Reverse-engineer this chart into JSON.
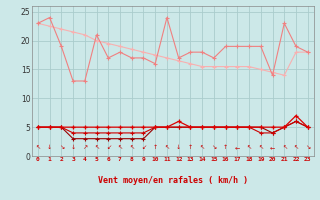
{
  "xlabel": "Vent moyen/en rafales ( km/h )",
  "hours": [
    0,
    1,
    2,
    3,
    4,
    5,
    6,
    7,
    8,
    9,
    10,
    11,
    12,
    13,
    14,
    15,
    16,
    17,
    18,
    19,
    20,
    21,
    22,
    23
  ],
  "rafales": [
    23,
    24,
    19,
    13,
    13,
    21,
    17,
    18,
    17,
    17,
    16,
    24,
    17,
    18,
    18,
    17,
    19,
    19,
    19,
    19,
    14,
    23,
    19,
    18
  ],
  "trend1": [
    23,
    22.5,
    22,
    21.5,
    21,
    20.0,
    19.5,
    19.0,
    18.5,
    18.0,
    17.5,
    17.0,
    16.5,
    16.0,
    15.5,
    15.5,
    15.5,
    15.5,
    15.5,
    15.0,
    14.5,
    14.0,
    18.0,
    18.0
  ],
  "vent_moyen": [
    5,
    5,
    5,
    5,
    5,
    5,
    5,
    5,
    5,
    5,
    5,
    5,
    6,
    5,
    5,
    5,
    5,
    5,
    5,
    5,
    5,
    5,
    7,
    5
  ],
  "vent_low1": [
    5,
    5,
    5,
    4,
    4,
    4,
    4,
    4,
    4,
    4,
    5,
    5,
    5,
    5,
    5,
    5,
    5,
    5,
    5,
    4,
    4,
    5,
    6,
    5
  ],
  "vent_low2": [
    5,
    5,
    5,
    3,
    3,
    3,
    3,
    3,
    3,
    3,
    5,
    5,
    5,
    5,
    5,
    5,
    5,
    5,
    5,
    5,
    4,
    5,
    6,
    5
  ],
  "color_rafales": "#f08080",
  "color_trend": "#f8b0b0",
  "color_vent_top": "#dd0000",
  "color_vent_mid": "#cc0000",
  "color_vent_low": "#990000",
  "bg_color": "#cce8e8",
  "grid_color": "#aacccc",
  "ylim": [
    0,
    26
  ],
  "yticks": [
    0,
    5,
    10,
    15,
    20,
    25
  ],
  "wind_arrows": [
    "↖",
    "↓",
    "↘",
    "↓",
    "↗",
    "↖",
    "↙",
    "↖",
    "↖",
    "↙",
    "↑",
    "↖",
    "↓",
    "↑",
    "↖",
    "↘",
    "↑",
    "←",
    "↖",
    "↖",
    "←",
    "↖",
    "↖",
    "↘"
  ]
}
